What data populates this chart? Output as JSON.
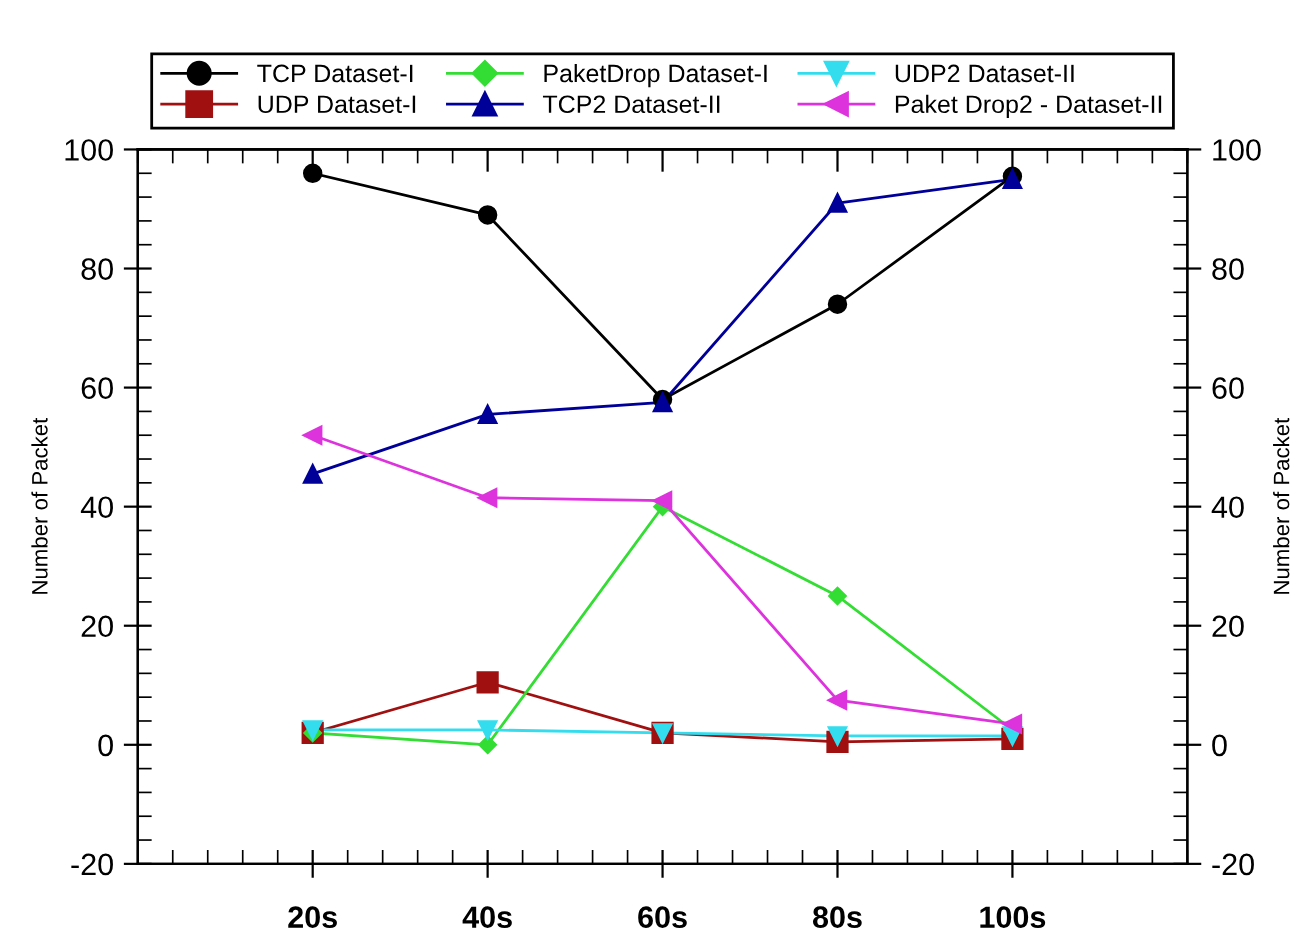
{
  "chart_data": {
    "type": "line",
    "ylabel": "Number of Packet",
    "y2label": "Number of Packet",
    "x": [
      20,
      40,
      60,
      80,
      100
    ],
    "xlim": [
      0,
      120
    ],
    "xticks": [
      {
        "value": 20,
        "label": "20s"
      },
      {
        "value": 40,
        "label": "40s"
      },
      {
        "value": 60,
        "label": "60s"
      },
      {
        "value": 80,
        "label": "80s"
      },
      {
        "value": 100,
        "label": "100s"
      }
    ],
    "ylim": [
      -20,
      100
    ],
    "yticks": [
      -20,
      0,
      20,
      40,
      60,
      80,
      100
    ],
    "y2lim": [
      -20,
      100
    ],
    "y2ticks": [
      -20,
      0,
      20,
      40,
      60,
      80,
      100
    ],
    "legend": "top",
    "line_style": "solid",
    "series": [
      {
        "name": "TCP Dataset-I",
        "color": "#000000",
        "marker": "circle",
        "values": [
          96,
          89,
          58,
          74,
          95.5
        ]
      },
      {
        "name": "UDP Dataset-I",
        "color": "#a01010",
        "marker": "square",
        "values": [
          2,
          10.5,
          2,
          0.5,
          1
        ]
      },
      {
        "name": "PaketDrop Dataset-I",
        "color": "#33dd33",
        "marker": "diamond",
        "values": [
          2,
          0,
          40,
          25,
          2.5
        ]
      },
      {
        "name": "TCP2 Dataset-II",
        "color": "#000099",
        "marker": "triangle",
        "values": [
          45.5,
          55.5,
          57.5,
          91,
          95
        ]
      },
      {
        "name": "UDP2 Dataset-II",
        "color": "#33ddee",
        "marker": "triangle-down",
        "values": [
          2.5,
          2.5,
          2,
          1.5,
          1.5
        ]
      },
      {
        "name": "Paket Drop2 - Dataset-II",
        "color": "#dd33dd",
        "marker": "triangle-left",
        "values": [
          52,
          41.5,
          41,
          7.5,
          3.5
        ]
      }
    ]
  }
}
